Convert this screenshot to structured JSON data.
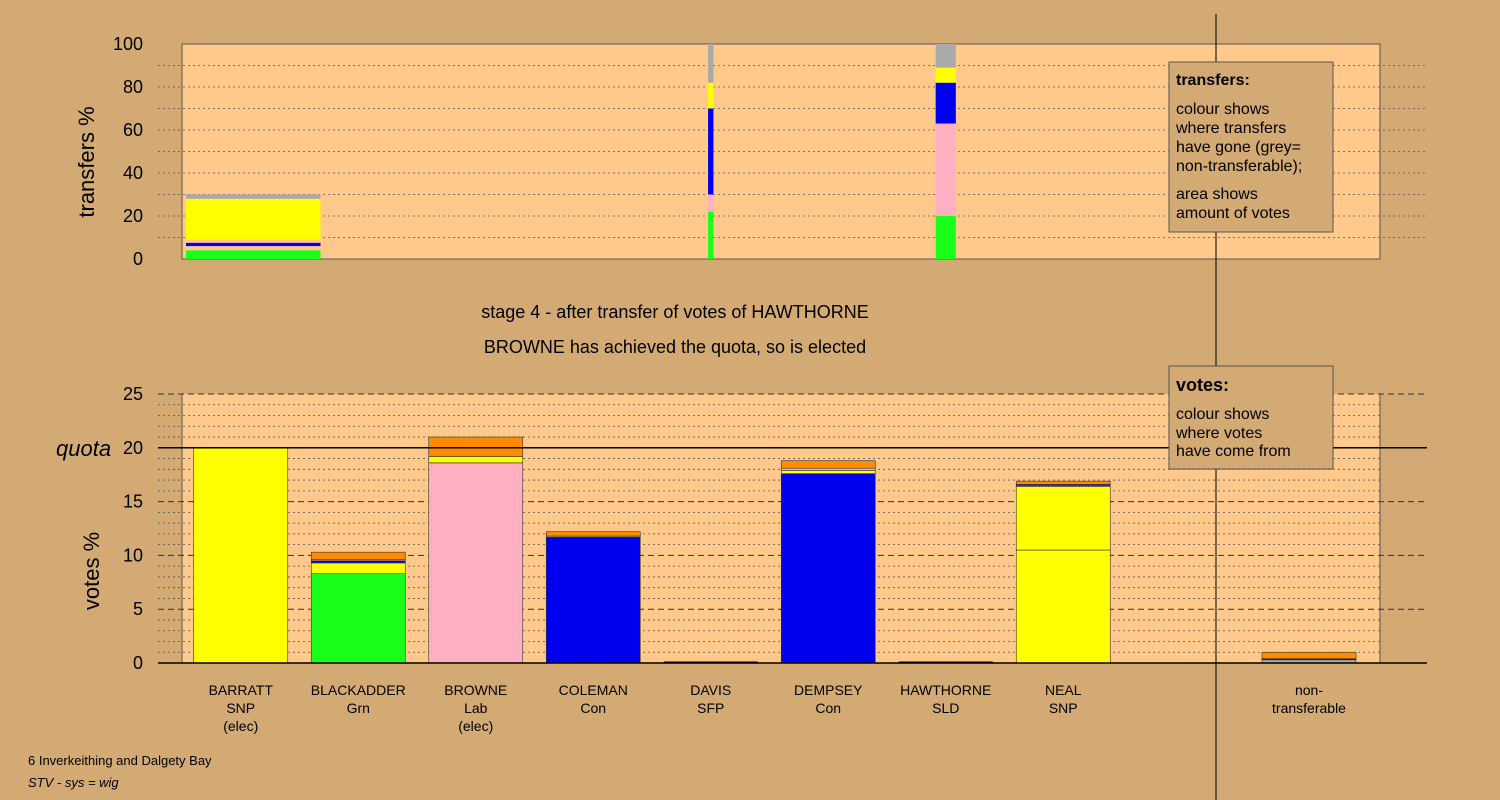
{
  "colors": {
    "background": "#d4aa74",
    "plot": "#ffc98c",
    "SNP": "#ffff00",
    "Grn": "#1aff1a",
    "Lab": "#ffb0c0",
    "Con": "#0000ee",
    "SFP": "#ff8c00",
    "SLD": "#ff9900",
    "nontransferable": "#aaaaaa"
  },
  "chart_data": [
    {
      "type": "bar",
      "subtype": "stacked-variable-width",
      "ylabel": "transfers %",
      "ylim": [
        0,
        100
      ],
      "yticks": [
        0,
        20,
        40,
        60,
        80,
        100
      ],
      "grid": "dotted",
      "bars": [
        {
          "candidate": "BARRATT",
          "width_share": 1.0,
          "segments": [
            {
              "party": "Grn",
              "from": 0,
              "to": 4
            },
            {
              "party": "Con",
              "from": 6,
              "to": 7.5
            },
            {
              "party": "SNP",
              "from": 9,
              "to": 28
            },
            {
              "party": "nontransferable",
              "from": 28,
              "to": 30
            }
          ]
        },
        {
          "candidate": "DAVIS",
          "width_share": 0.04,
          "segments": [
            {
              "party": "Grn",
              "from": 0,
              "to": 22
            },
            {
              "party": "Lab",
              "from": 22,
              "to": 30
            },
            {
              "party": "Con",
              "from": 30,
              "to": 70
            },
            {
              "party": "SNP",
              "from": 70,
              "to": 82
            },
            {
              "party": "nontransferable",
              "from": 82,
              "to": 100
            }
          ]
        },
        {
          "candidate": "HAWTHORNE",
          "width_share": 0.15,
          "segments": [
            {
              "party": "Grn",
              "from": 0,
              "to": 20
            },
            {
              "party": "Lab",
              "from": 20,
              "to": 63
            },
            {
              "party": "Con",
              "from": 63,
              "to": 82
            },
            {
              "party": "SNP",
              "from": 82,
              "to": 89
            },
            {
              "party": "nontransferable",
              "from": 89,
              "to": 100
            }
          ]
        }
      ],
      "legend": {
        "title": "transfers:",
        "lines": [
          "colour shows",
          "where transfers",
          "have gone (grey=",
          "non-transferable);",
          "area shows",
          "amount of votes"
        ]
      }
    },
    {
      "type": "bar",
      "subtype": "stacked",
      "ylabel": "votes %",
      "ylim": [
        0,
        25
      ],
      "yticks": [
        0,
        5,
        10,
        15,
        20,
        25
      ],
      "quota": 20,
      "quota_label": "quota",
      "grid": "dashed",
      "bars": [
        {
          "name": "BARRATT",
          "party": "SNP",
          "note": "(elec)",
          "segments": [
            {
              "party": "SNP",
              "value": 20
            }
          ]
        },
        {
          "name": "BLACKADDER",
          "party": "Grn",
          "note": "",
          "segments": [
            {
              "party": "Grn",
              "value": 8.3
            },
            {
              "party": "SNP",
              "value": 1.0
            },
            {
              "party": "Con",
              "value": 0.2
            },
            {
              "party": "Lab",
              "value": 0.1
            },
            {
              "party": "SFP",
              "value": 0.7
            }
          ]
        },
        {
          "name": "BROWNE",
          "party": "Lab",
          "note": "(elec)",
          "segments": [
            {
              "party": "Lab",
              "value": 18.6
            },
            {
              "party": "SNP",
              "value": 0.6
            },
            {
              "party": "SFP",
              "value": 1.8
            }
          ]
        },
        {
          "name": "COLEMAN",
          "party": "Con",
          "note": "",
          "segments": [
            {
              "party": "Con",
              "value": 11.7
            },
            {
              "party": "SNP",
              "value": 0.1
            },
            {
              "party": "SFP",
              "value": 0.4
            }
          ]
        },
        {
          "name": "DAVIS",
          "party": "SFP",
          "note": "",
          "segments": []
        },
        {
          "name": "DEMPSEY",
          "party": "Con",
          "note": "",
          "segments": [
            {
              "party": "Con",
              "value": 17.6
            },
            {
              "party": "SNP",
              "value": 0.3
            },
            {
              "party": "Lab",
              "value": 0.2
            },
            {
              "party": "SFP",
              "value": 0.7
            }
          ]
        },
        {
          "name": "HAWTHORNE",
          "party": "SLD",
          "note": "",
          "segments": []
        },
        {
          "name": "NEAL",
          "party": "SNP",
          "note": "",
          "segments": [
            {
              "party": "SNP",
              "value": 10.5
            },
            {
              "party": "SNP",
              "value": 5.9
            },
            {
              "party": "Lab",
              "value": 0.1
            },
            {
              "party": "Con",
              "value": 0.1
            },
            {
              "party": "SFP",
              "value": 0.3
            }
          ]
        },
        {
          "name": "non-",
          "party": "transferable",
          "note": "",
          "segments": [
            {
              "party": "nontransferable",
              "value": 0.3
            },
            {
              "party": "Con",
              "value": 0.1
            },
            {
              "party": "SFP",
              "value": 0.6
            }
          ]
        }
      ],
      "legend": {
        "title": "votes:",
        "lines": [
          "colour shows",
          "where votes",
          "have come from"
        ]
      }
    }
  ],
  "caption": {
    "line1": "stage 4 - after transfer of votes of HAWTHORNE",
    "line2": "BROWNE has achieved the quota, so is elected"
  },
  "footer": {
    "line1": "6 Inverkeithing and Dalgety Bay",
    "line2": "STV - sys = wig"
  }
}
